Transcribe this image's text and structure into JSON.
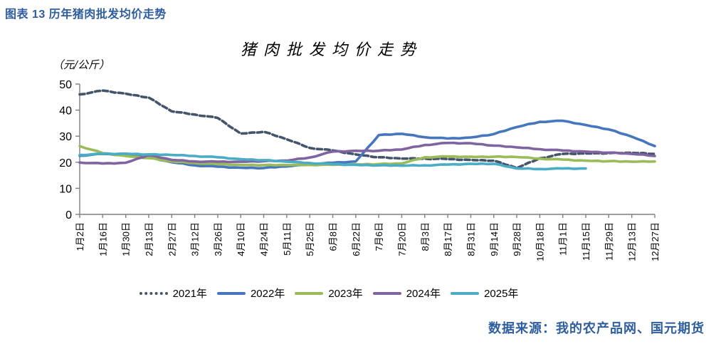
{
  "caption": "图表 13 历年猪肉批发均价走势",
  "source": "数据来源：我的农产品网、国元期货",
  "colors": {
    "caption_blue": "#2e5e9e",
    "axis_gray": "#7f7f7f",
    "text_black": "#000000"
  },
  "chart_data": {
    "type": "line",
    "title": "猪肉批发均价走势",
    "ylabel": "（元/公斤）",
    "xlabel": "",
    "ylim": [
      0,
      50
    ],
    "yticks": [
      0,
      10,
      20,
      30,
      40,
      50
    ],
    "grid": false,
    "legend_position": "bottom",
    "categories": [
      "1月2日",
      "1月16日",
      "1月30日",
      "2月13日",
      "2月27日",
      "3月12日",
      "3月26日",
      "4月10日",
      "4月24日",
      "5月11日",
      "5月25日",
      "6月8日",
      "6月22日",
      "7月6日",
      "7月20日",
      "8月3日",
      "8月17日",
      "8月31日",
      "9月14日",
      "9月28日",
      "10月18日",
      "11月1日",
      "11月15日",
      "11月29日",
      "12月13日",
      "12月27日"
    ],
    "series": [
      {
        "name": "2021年",
        "color": "#44546a",
        "style": "dotted",
        "values": [
          46.0,
          47.5,
          46.3,
          44.8,
          39.5,
          38.3,
          37.0,
          31.0,
          31.7,
          28.8,
          25.5,
          24.5,
          23.0,
          21.9,
          21.4,
          21.4,
          21.2,
          20.9,
          20.6,
          17.8,
          21.5,
          23.2,
          23.4,
          23.5,
          23.6,
          23.2
        ]
      },
      {
        "name": "2022年",
        "color": "#4576be",
        "style": "solid",
        "values": [
          22.5,
          23.2,
          22.8,
          21.8,
          20.0,
          18.8,
          18.3,
          17.9,
          17.8,
          18.4,
          19.2,
          19.8,
          20.3,
          30.4,
          30.9,
          29.6,
          29.1,
          29.5,
          30.8,
          33.5,
          35.5,
          35.9,
          34.3,
          32.6,
          29.8,
          26.2
        ]
      },
      {
        "name": "2023年",
        "color": "#9bbb59",
        "style": "solid",
        "values": [
          26.2,
          23.5,
          22.4,
          21.6,
          20.3,
          19.7,
          19.3,
          19.0,
          18.9,
          18.9,
          19.0,
          19.0,
          19.2,
          19.3,
          19.5,
          21.9,
          22.2,
          22.1,
          22.1,
          22.0,
          21.4,
          21.0,
          20.6,
          20.4,
          20.2,
          20.3
        ]
      },
      {
        "name": "2024年",
        "color": "#8064a2",
        "style": "solid",
        "values": [
          19.9,
          19.5,
          19.8,
          22.8,
          20.9,
          20.3,
          20.2,
          20.2,
          20.4,
          20.6,
          21.8,
          24.1,
          24.4,
          24.4,
          24.9,
          26.6,
          27.4,
          27.3,
          26.4,
          25.7,
          25.0,
          24.5,
          24.1,
          23.7,
          23.2,
          22.4
        ]
      },
      {
        "name": "2025年",
        "color": "#4bacc6",
        "style": "solid",
        "values": [
          22.8,
          23.2,
          23.3,
          23.0,
          22.8,
          22.4,
          21.9,
          21.2,
          20.8,
          20.2,
          19.7,
          19.3,
          19.0,
          18.8,
          18.7,
          18.8,
          19.1,
          19.4,
          19.4,
          17.6,
          17.4,
          17.6,
          17.6,
          null,
          null,
          null
        ]
      }
    ]
  }
}
